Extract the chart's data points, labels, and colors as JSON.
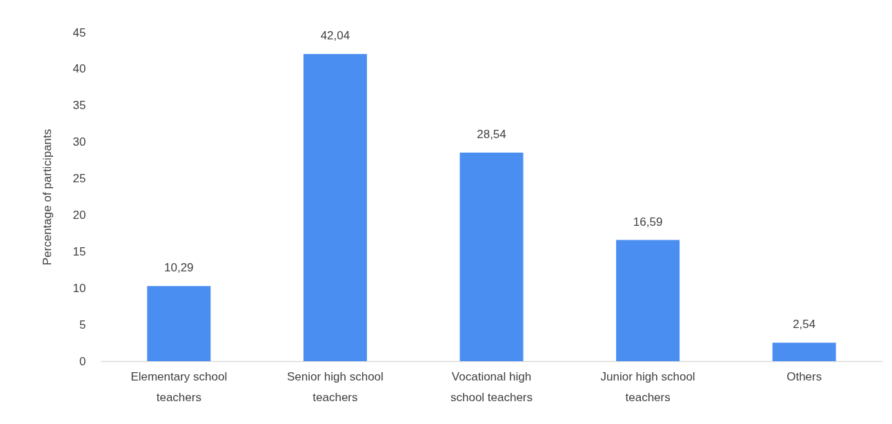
{
  "chart_data": {
    "type": "bar",
    "ylabel": "Percentage of participants",
    "categories": [
      "Elementary school teachers",
      "Senior high school teachers",
      "Vocational high school teachers",
      "Junior high school teachers",
      "Others"
    ],
    "values": [
      10.29,
      42.04,
      28.54,
      16.59,
      2.54
    ],
    "value_labels": [
      "10,29",
      "42,04",
      "28,54",
      "16,59",
      "2,54"
    ],
    "color": "#4a8ef2",
    "ylim": [
      0,
      45
    ],
    "yticks": [
      0,
      5,
      10,
      15,
      20,
      25,
      30,
      35,
      40,
      45
    ],
    "grid": false
  }
}
